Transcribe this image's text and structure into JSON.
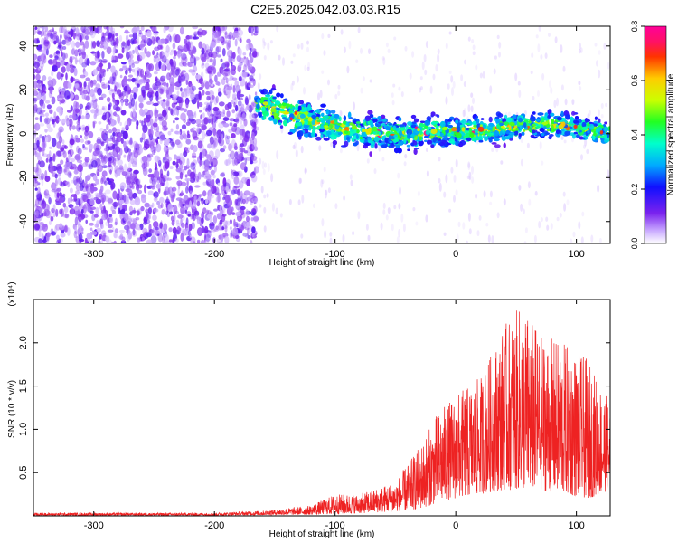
{
  "title": "C2E5.2025.042.03.03.R15",
  "colors": {
    "line": "#ee2222",
    "axis": "#000000"
  },
  "chart_data": [
    {
      "type": "heatmap",
      "xlabel": "Height of straight line (km)",
      "ylabel": "Frequency (Hz)",
      "xlim": [
        -350,
        128
      ],
      "ylim": [
        -50,
        49
      ],
      "x_ticks": [
        {
          "v": -300,
          "label": "-300"
        },
        {
          "v": -200,
          "label": "-200"
        },
        {
          "v": -100,
          "label": "-100"
        },
        {
          "v": 0,
          "label": "0"
        },
        {
          "v": 100,
          "label": "100"
        }
      ],
      "y_ticks": [
        {
          "v": -40,
          "label": "-40"
        },
        {
          "v": -20,
          "label": "-20"
        },
        {
          "v": 0,
          "label": "0"
        },
        {
          "v": 20,
          "label": "20"
        },
        {
          "v": 40,
          "label": "40"
        }
      ],
      "noise_region_x": [
        -350,
        -165
      ],
      "ridge": [
        {
          "x": -165,
          "f": 14
        },
        {
          "x": -140,
          "f": 9
        },
        {
          "x": -120,
          "f": 6
        },
        {
          "x": -100,
          "f": 3
        },
        {
          "x": -80,
          "f": 1
        },
        {
          "x": -50,
          "f": 0
        },
        {
          "x": -20,
          "f": 1
        },
        {
          "x": 0,
          "f": 1
        },
        {
          "x": 30,
          "f": 2
        },
        {
          "x": 60,
          "f": 4
        },
        {
          "x": 90,
          "f": 4
        },
        {
          "x": 110,
          "f": 2
        },
        {
          "x": 128,
          "f": 0
        }
      ],
      "colorbar": {
        "label": "Normalized spectral amplitude",
        "range": [
          0,
          0.8
        ],
        "ticks": [
          {
            "v": 0.0,
            "label": "0.0"
          },
          {
            "v": 0.2,
            "label": "0.2"
          },
          {
            "v": 0.4,
            "label": "0.4"
          },
          {
            "v": 0.6,
            "label": "0.6"
          },
          {
            "v": 0.8,
            "label": "0.8"
          }
        ]
      }
    },
    {
      "type": "line",
      "xlabel": "Height of straight line (km)",
      "ylabel": "SNR (10 * v/v)",
      "y_multiplier": "(x10⁴)",
      "xlim": [
        -350,
        128
      ],
      "ylim": [
        0,
        25000
      ],
      "x_ticks": [
        {
          "v": -300,
          "label": "-300"
        },
        {
          "v": -200,
          "label": "-200"
        },
        {
          "v": -100,
          "label": "-100"
        },
        {
          "v": 0,
          "label": "0"
        },
        {
          "v": 100,
          "label": "100"
        }
      ],
      "y_ticks": [
        {
          "v": 5000,
          "label": "0.5"
        },
        {
          "v": 10000,
          "label": "1.0"
        },
        {
          "v": 15000,
          "label": "1.5"
        },
        {
          "v": 20000,
          "label": "2.0"
        }
      ],
      "envelope": [
        {
          "x": -350,
          "min": 50,
          "max": 350
        },
        {
          "x": -200,
          "min": 50,
          "max": 350
        },
        {
          "x": -160,
          "min": 100,
          "max": 600
        },
        {
          "x": -120,
          "min": 150,
          "max": 1200
        },
        {
          "x": -100,
          "min": 200,
          "max": 2500
        },
        {
          "x": -80,
          "min": 300,
          "max": 2500
        },
        {
          "x": -50,
          "min": 500,
          "max": 4000
        },
        {
          "x": -30,
          "min": 800,
          "max": 8000
        },
        {
          "x": -15,
          "min": 1500,
          "max": 12000
        },
        {
          "x": 0,
          "min": 2000,
          "max": 14000
        },
        {
          "x": 20,
          "min": 2500,
          "max": 16000
        },
        {
          "x": 40,
          "min": 3000,
          "max": 22000
        },
        {
          "x": 55,
          "min": 3000,
          "max": 24500
        },
        {
          "x": 70,
          "min": 3000,
          "max": 21000
        },
        {
          "x": 90,
          "min": 2500,
          "max": 20000
        },
        {
          "x": 110,
          "min": 2000,
          "max": 18000
        },
        {
          "x": 128,
          "min": 3000,
          "max": 13000
        }
      ]
    }
  ]
}
